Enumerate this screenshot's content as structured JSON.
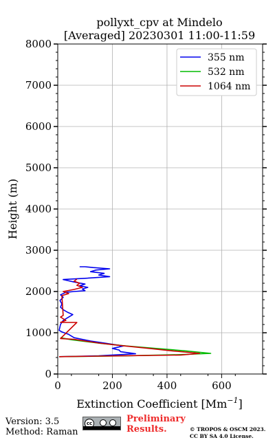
{
  "chart_data": {
    "type": "line",
    "title_line1": "pollyxt_cpv at Mindelo",
    "title_line2": "[Averaged] 20230301 11:00-11:59",
    "xlabel": "Extinction Coefficient [Mm",
    "xlabel_sup": "−1",
    "xlabel_end": "]",
    "ylabel": "Height (m)",
    "xlim": [
      0,
      750
    ],
    "ylim": [
      0,
      8000
    ],
    "x_ticks": [
      "0",
      "200",
      "400",
      "600"
    ],
    "y_ticks": [
      "0",
      "1000",
      "2000",
      "3000",
      "4000",
      "5000",
      "6000",
      "7000",
      "8000"
    ],
    "grid": true,
    "legend_position": "top-right",
    "series": [
      {
        "name": "355 nm",
        "color": "#0000ee",
        "points": [
          [
            5,
            420
          ],
          [
            150,
            440
          ],
          [
            285,
            490
          ],
          [
            265,
            510
          ],
          [
            230,
            540
          ],
          [
            225,
            580
          ],
          [
            200,
            620
          ],
          [
            240,
            680
          ],
          [
            180,
            740
          ],
          [
            120,
            800
          ],
          [
            60,
            880
          ],
          [
            40,
            960
          ],
          [
            15,
            1020
          ],
          [
            5,
            1060
          ],
          [
            10,
            1200
          ],
          [
            20,
            1300
          ],
          [
            40,
            1380
          ],
          [
            55,
            1440
          ],
          [
            35,
            1500
          ],
          [
            20,
            1560
          ],
          [
            10,
            1620
          ],
          [
            15,
            1700
          ],
          [
            8,
            1780
          ],
          [
            20,
            1860
          ],
          [
            10,
            1920
          ],
          [
            30,
            1980
          ],
          [
            60,
            2000
          ],
          [
            100,
            2020
          ],
          [
            90,
            2060
          ],
          [
            110,
            2100
          ],
          [
            80,
            2140
          ],
          [
            100,
            2180
          ],
          [
            60,
            2230
          ],
          [
            20,
            2290
          ],
          [
            100,
            2320
          ],
          [
            190,
            2360
          ],
          [
            150,
            2400
          ],
          [
            170,
            2440
          ],
          [
            120,
            2480
          ],
          [
            140,
            2520
          ],
          [
            190,
            2550
          ],
          [
            130,
            2580
          ],
          [
            100,
            2600
          ],
          [
            80,
            2600
          ]
        ]
      },
      {
        "name": "532 nm",
        "color": "#00bb00",
        "points": [
          [
            5,
            420
          ],
          [
            250,
            440
          ],
          [
            450,
            470
          ],
          [
            560,
            500
          ],
          [
            470,
            560
          ],
          [
            360,
            620
          ],
          [
            250,
            680
          ],
          [
            160,
            740
          ],
          [
            50,
            830
          ],
          [
            10,
            880
          ]
        ]
      },
      {
        "name": "1064 nm",
        "color": "#cc0000",
        "points": [
          [
            5,
            420
          ],
          [
            230,
            440
          ],
          [
            450,
            460
          ],
          [
            520,
            500
          ],
          [
            420,
            560
          ],
          [
            320,
            630
          ],
          [
            230,
            690
          ],
          [
            150,
            750
          ],
          [
            60,
            840
          ],
          [
            10,
            860
          ],
          [
            70,
            1250
          ],
          [
            10,
            1250
          ],
          [
            30,
            1300
          ],
          [
            10,
            1380
          ],
          [
            20,
            1420
          ],
          [
            15,
            1900
          ],
          [
            40,
            1950
          ],
          [
            20,
            2000
          ],
          [
            60,
            2050
          ],
          [
            90,
            2100
          ],
          [
            70,
            2150
          ],
          [
            80,
            2200
          ],
          [
            60,
            2250
          ],
          [
            70,
            2300
          ]
        ]
      }
    ]
  },
  "footer": {
    "version": "Version: 3.5",
    "method": "Method: Raman",
    "preliminary_line1": "Preliminary",
    "preliminary_line2": "Results.",
    "copyright_line1": "© TROPOS & OSCM 2023.",
    "copyright_line2": "CC BY SA 4.0 License.",
    "cc_badge_text": "cc"
  }
}
